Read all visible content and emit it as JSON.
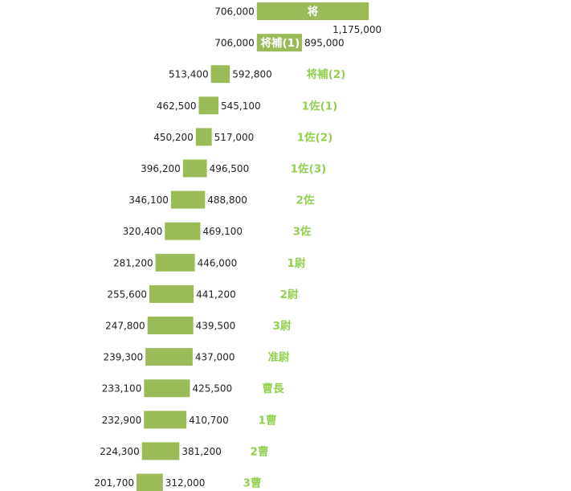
{
  "colors": {
    "bar": "#9bbb59",
    "label": "#92d050",
    "text": "#222222"
  },
  "chart_data": {
    "type": "bar",
    "orientation": "horizontal-range",
    "title": "",
    "xlabel": "",
    "ylabel": "",
    "xlim": [
      0,
      1200000
    ],
    "categories": [
      "将",
      "将補(1)",
      "将補(2)",
      "1佐(1)",
      "1佐(2)",
      "1佐(3)",
      "2佐",
      "3佐",
      "1尉",
      "2尉",
      "3尉",
      "准尉",
      "曹長",
      "1曹",
      "2曹",
      "3曹"
    ],
    "series": [
      {
        "name": "min",
        "values": [
          706000,
          706000,
          513400,
          462500,
          450200,
          396200,
          346100,
          320400,
          281200,
          255600,
          247800,
          239300,
          233100,
          232900,
          224300,
          201700
        ]
      },
      {
        "name": "max",
        "values": [
          1175000,
          895000,
          592800,
          545100,
          517000,
          496500,
          488800,
          469100,
          446000,
          441200,
          439500,
          437000,
          425500,
          410700,
          381200,
          312000
        ]
      }
    ],
    "min_labels": [
      "706,000",
      "706,000",
      "513,400",
      "462,500",
      "450,200",
      "396,200",
      "346,100",
      "320,400",
      "281,200",
      "255,600",
      "247,800",
      "239,300",
      "233,100",
      "232,900",
      "224,300",
      "201,700"
    ],
    "max_labels": [
      "1,175,000",
      "895,000",
      "592,800",
      "545,100",
      "517,000",
      "496,500",
      "488,800",
      "469,100",
      "446,000",
      "441,200",
      "439,500",
      "437,000",
      "425,500",
      "410,700",
      "381,200",
      "312,000"
    ],
    "legend": "none",
    "grid": false
  }
}
